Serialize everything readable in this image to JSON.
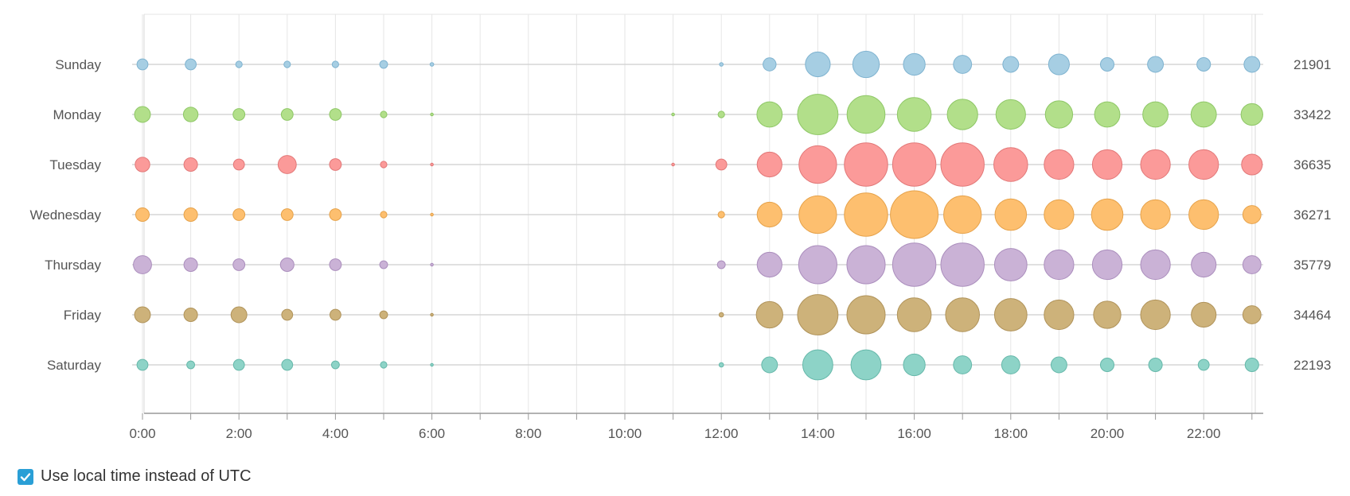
{
  "chart_data": {
    "type": "scatter",
    "subtype": "punchcard",
    "days": [
      "Sunday",
      "Monday",
      "Tuesday",
      "Wednesday",
      "Thursday",
      "Friday",
      "Saturday"
    ],
    "totals": [
      "21901",
      "33422",
      "36635",
      "36271",
      "35779",
      "34464",
      "22193"
    ],
    "x_ticks": [
      "0:00",
      "2:00",
      "4:00",
      "6:00",
      "8:00",
      "10:00",
      "12:00",
      "14:00",
      "16:00",
      "18:00",
      "20:00",
      "22:00"
    ],
    "hours": [
      0,
      1,
      2,
      3,
      4,
      5,
      6,
      7,
      8,
      9,
      10,
      11,
      12,
      13,
      14,
      15,
      16,
      17,
      18,
      19,
      20,
      21,
      22,
      23
    ],
    "colors": [
      "#a6cee3",
      "#b2df8a",
      "#fb9a99",
      "#fdbf6f",
      "#cab2d6",
      "#cdb27a",
      "#8dd3c7"
    ],
    "stroke_colors": [
      "#7fb3d0",
      "#8ec766",
      "#e27878",
      "#e6a24a",
      "#ab8ebd",
      "#b0935a",
      "#66b8aa"
    ],
    "values": [
      [
        126,
        126,
        44,
        44,
        44,
        64,
        14,
        0,
        0,
        0,
        0,
        0,
        14,
        178,
        644,
        737,
        494,
        345,
        262,
        451,
        193,
        262,
        193,
        262
      ],
      [
        262,
        223,
        145,
        145,
        145,
        44,
        8,
        0,
        0,
        0,
        0,
        8,
        44,
        668,
        1710,
        1500,
        1200,
        968,
        916,
        781,
        671,
        671,
        671,
        494
      ],
      [
        223,
        193,
        126,
        345,
        145,
        44,
        8,
        0,
        0,
        0,
        0,
        8,
        126,
        643,
        1478,
        1963,
        1963,
        1963,
        1200,
        919,
        919,
        919,
        919,
        451
      ],
      [
        193,
        193,
        145,
        145,
        145,
        44,
        8,
        0,
        0,
        0,
        0,
        0,
        44,
        643,
        1478,
        1963,
        2386,
        1478,
        1038,
        919,
        1038,
        919,
        919,
        345
      ],
      [
        345,
        193,
        145,
        193,
        145,
        64,
        8,
        0,
        0,
        0,
        0,
        0,
        64,
        643,
        1530,
        1530,
        1963,
        1963,
        1100,
        919,
        919,
        919,
        643,
        345
      ],
      [
        262,
        193,
        262,
        126,
        126,
        64,
        8,
        0,
        0,
        0,
        0,
        0,
        21,
        737,
        1710,
        1530,
        1200,
        1200,
        1100,
        919,
        781,
        919,
        643,
        345
      ],
      [
        126,
        64,
        126,
        126,
        64,
        44,
        8,
        0,
        0,
        0,
        0,
        0,
        21,
        262,
        947,
        947,
        494,
        345,
        345,
        262,
        193,
        193,
        126,
        193
      ]
    ],
    "title": "",
    "xlabel": "",
    "ylabel": "",
    "grid": true
  },
  "controls": {
    "local_time_label": "Use local time instead of UTC",
    "local_time_checked": true,
    "check_icon": "check-icon",
    "checkbox_color": "#2a9fd6"
  }
}
